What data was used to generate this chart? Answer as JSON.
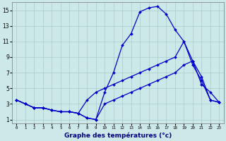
{
  "xlabel": "Graphe des températures (°c)",
  "background_color": "#cce8e8",
  "grid_color": "#aacccc",
  "line_color": "#0000cc",
  "xlim": [
    -0.5,
    23.5
  ],
  "ylim": [
    0.5,
    16.0
  ],
  "xticks": [
    0,
    1,
    2,
    3,
    4,
    5,
    6,
    7,
    8,
    9,
    10,
    11,
    12,
    13,
    14,
    15,
    16,
    17,
    18,
    19,
    20,
    21,
    22,
    23
  ],
  "yticks": [
    1,
    3,
    5,
    7,
    9,
    11,
    13,
    15
  ],
  "line1_x": [
    0,
    1,
    2,
    3,
    4,
    5,
    6,
    7,
    8,
    9,
    10,
    11,
    12,
    13,
    14,
    15,
    16,
    17,
    18,
    19,
    20,
    21,
    22,
    23
  ],
  "line1_y": [
    3.5,
    3.0,
    2.5,
    2.5,
    2.2,
    2.0,
    2.0,
    1.8,
    1.2,
    1.0,
    4.5,
    7.0,
    10.5,
    12.0,
    14.8,
    15.3,
    15.5,
    14.5,
    12.5,
    11.0,
    8.5,
    5.5,
    4.5,
    3.2
  ],
  "line2_x": [
    0,
    1,
    2,
    3,
    4,
    5,
    6,
    7,
    8,
    9,
    10,
    11,
    12,
    13,
    14,
    15,
    16,
    17,
    18,
    19,
    20,
    21,
    22,
    23
  ],
  "line2_y": [
    3.5,
    3.0,
    2.5,
    2.5,
    2.2,
    2.0,
    2.0,
    1.8,
    3.5,
    4.5,
    5.0,
    5.5,
    6.0,
    6.5,
    7.0,
    7.5,
    8.0,
    8.5,
    9.0,
    11.0,
    8.0,
    6.0,
    3.5,
    3.2
  ],
  "line3_x": [
    0,
    1,
    2,
    3,
    4,
    5,
    6,
    7,
    8,
    9,
    10,
    11,
    12,
    13,
    14,
    15,
    16,
    17,
    18,
    19,
    20,
    21,
    22,
    23
  ],
  "line3_y": [
    3.5,
    3.0,
    2.5,
    2.5,
    2.2,
    2.0,
    2.0,
    1.8,
    1.2,
    1.0,
    3.0,
    3.5,
    4.0,
    4.5,
    5.0,
    5.5,
    6.0,
    6.5,
    7.0,
    8.0,
    8.5,
    6.5,
    3.5,
    3.2
  ],
  "marker": "D",
  "marker_size": 2.0,
  "line_width": 0.9,
  "xlabel_fontsize": 6.5,
  "xlabel_color": "#000080",
  "tick_fontsize_x": 4.2,
  "tick_fontsize_y": 5.5
}
